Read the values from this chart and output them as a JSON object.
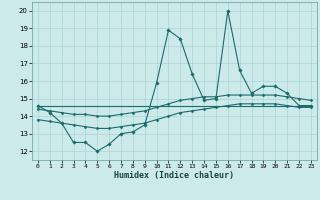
{
  "xlabel": "Humidex (Indice chaleur)",
  "ylabel": "",
  "bg_color": "#cceaea",
  "grid_color": "#aad4d4",
  "line_color": "#1a6b6b",
  "xlim": [
    -0.5,
    23.5
  ],
  "ylim": [
    11.5,
    20.5
  ],
  "yticks": [
    12,
    13,
    14,
    15,
    16,
    17,
    18,
    19,
    20
  ],
  "xticks": [
    0,
    1,
    2,
    3,
    4,
    5,
    6,
    7,
    8,
    9,
    10,
    11,
    12,
    13,
    14,
    15,
    16,
    17,
    18,
    19,
    20,
    21,
    22,
    23
  ],
  "series1_x": [
    0,
    1,
    2,
    3,
    4,
    5,
    6,
    7,
    8,
    9,
    10,
    11,
    12,
    13,
    14,
    15,
    16,
    17,
    18,
    19,
    20,
    21,
    22,
    23
  ],
  "series1_y": [
    14.6,
    14.2,
    13.6,
    12.5,
    12.5,
    12.0,
    12.4,
    13.0,
    13.1,
    13.5,
    15.9,
    18.9,
    18.4,
    16.4,
    14.9,
    15.0,
    20.0,
    16.6,
    15.3,
    15.7,
    15.7,
    15.3,
    14.6,
    14.6
  ],
  "series2_x": [
    0,
    23
  ],
  "series2_y": [
    14.6,
    14.6
  ],
  "series3_x": [
    0,
    1,
    2,
    3,
    4,
    5,
    6,
    7,
    8,
    9,
    10,
    11,
    12,
    13,
    14,
    15,
    16,
    17,
    18,
    19,
    20,
    21,
    22,
    23
  ],
  "series3_y": [
    14.4,
    14.3,
    14.2,
    14.1,
    14.1,
    14.0,
    14.0,
    14.1,
    14.2,
    14.3,
    14.5,
    14.7,
    14.9,
    15.0,
    15.1,
    15.1,
    15.2,
    15.2,
    15.2,
    15.2,
    15.2,
    15.1,
    15.0,
    14.9
  ],
  "series4_x": [
    0,
    1,
    2,
    3,
    4,
    5,
    6,
    7,
    8,
    9,
    10,
    11,
    12,
    13,
    14,
    15,
    16,
    17,
    18,
    19,
    20,
    21,
    22,
    23
  ],
  "series4_y": [
    13.8,
    13.7,
    13.6,
    13.5,
    13.4,
    13.3,
    13.3,
    13.4,
    13.5,
    13.6,
    13.8,
    14.0,
    14.2,
    14.3,
    14.4,
    14.5,
    14.6,
    14.7,
    14.7,
    14.7,
    14.7,
    14.6,
    14.5,
    14.5
  ]
}
